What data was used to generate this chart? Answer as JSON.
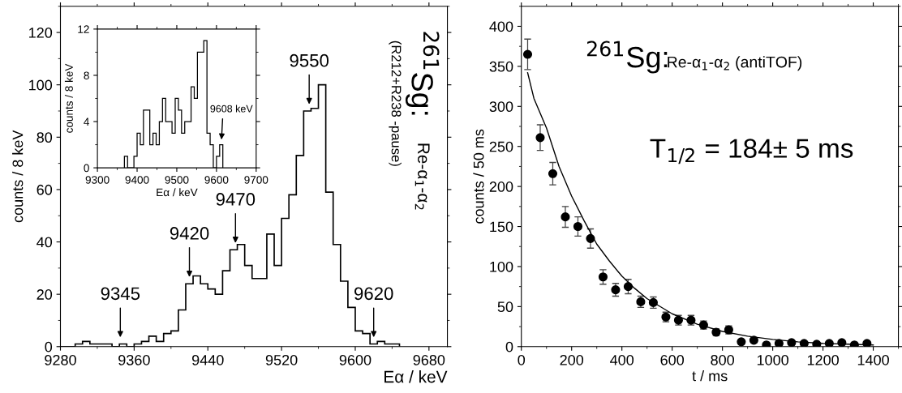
{
  "chart_data": [
    {
      "type": "histogram",
      "xlabel": "Eα / keV",
      "ylabel": "counts / 8 keV",
      "color": "#000000",
      "bins": [
        9280,
        9288,
        9296,
        9304,
        9312,
        9320,
        9328,
        9336,
        9344,
        9352,
        9360,
        9368,
        9376,
        9384,
        9392,
        9400,
        9408,
        9416,
        9424,
        9432,
        9440,
        9448,
        9456,
        9464,
        9472,
        9480,
        9488,
        9496,
        9504,
        9512,
        9520,
        9528,
        9536,
        9544,
        9552,
        9560,
        9568,
        9576,
        9584,
        9592,
        9600,
        9608,
        9616,
        9624,
        9632,
        9640,
        9648
      ],
      "values": [
        0,
        0,
        1,
        2,
        1,
        1,
        1,
        0,
        1,
        0,
        1,
        2,
        4,
        2,
        5,
        6,
        14,
        24,
        27,
        24,
        22,
        20,
        29,
        37,
        39,
        31,
        26,
        26,
        43,
        31,
        49,
        58,
        73,
        90,
        91,
        100,
        59,
        39,
        25,
        15,
        6,
        5,
        1,
        2,
        1,
        1
      ],
      "xlim": [
        9280,
        9700
      ],
      "xticks": [
        9280,
        9360,
        9440,
        9520,
        9600,
        9680
      ],
      "ylim": [
        0,
        130
      ],
      "yticks": [
        0,
        20,
        40,
        60,
        80,
        100,
        120
      ],
      "annotations": [
        {
          "text": "9345",
          "x": 9345,
          "y": 1
        },
        {
          "text": "9420",
          "x": 9420,
          "y": 24
        },
        {
          "text": "9470",
          "x": 9470,
          "y": 37
        },
        {
          "text": "9550",
          "x": 9550,
          "y": 90
        },
        {
          "text": "9620",
          "x": 9620,
          "y": 1
        },
        "$^{261}$Sg:",
        "Re-α$_{1}$-α$_{2}$",
        "(R212+R238 -pause)"
      ]
    },
    {
      "type": "histogram",
      "xlabel": "Eα / keV",
      "ylabel": "counts / 8 keV",
      "color": "#000000",
      "bins": [
        9368,
        9376,
        9384,
        9392,
        9400,
        9408,
        9416,
        9424,
        9432,
        9440,
        9448,
        9456,
        9464,
        9472,
        9480,
        9488,
        9496,
        9504,
        9512,
        9520,
        9528,
        9536,
        9544,
        9552,
        9560,
        9568,
        9576,
        9584,
        9592,
        9600,
        9608,
        9616
      ],
      "values": [
        1,
        0,
        0,
        1,
        3,
        2,
        5,
        5,
        2,
        3,
        2,
        4,
        6,
        4,
        4,
        3,
        6,
        5,
        3,
        4,
        4,
        7,
        6,
        10,
        10,
        11,
        3,
        2,
        0,
        1,
        2
      ],
      "xlim": [
        9300,
        9700
      ],
      "xticks": [
        9300,
        9400,
        9500,
        9600,
        9700
      ],
      "ylim": [
        0,
        12
      ],
      "yticks": [
        0,
        4,
        8,
        12
      ],
      "annotations": [
        {
          "text": "9608 keV",
          "x": 9612,
          "y": 2
        }
      ]
    },
    {
      "type": "scatter",
      "xlabel": "t / ms",
      "ylabel": "counts / 50 ms",
      "xlim": [
        0,
        1500
      ],
      "xticks": [
        0,
        200,
        400,
        600,
        800,
        1000,
        1200,
        1400
      ],
      "ylim": [
        0,
        425
      ],
      "yticks": [
        0,
        50,
        100,
        150,
        200,
        250,
        300,
        350,
        400
      ],
      "series": [
        {
          "type": "scatter",
          "marker": "circle",
          "color": "#000000",
          "x": [
            25,
            75,
            125,
            175,
            225,
            275,
            325,
            375,
            425,
            475,
            525,
            575,
            625,
            675,
            725,
            775,
            825,
            875,
            925,
            975,
            1025,
            1075,
            1125,
            1175,
            1225,
            1275,
            1325,
            1375
          ],
          "values": [
            365,
            261,
            216,
            162,
            150,
            135,
            87,
            71,
            75,
            56,
            55,
            37,
            33,
            33,
            27,
            18,
            21,
            6,
            8,
            2,
            4,
            5,
            4,
            3,
            4,
            5,
            2,
            4
          ],
          "errors": [
            19,
            16,
            14,
            13,
            12,
            12,
            9,
            8,
            9,
            7,
            7,
            6,
            6,
            6,
            5,
            4,
            5,
            2,
            3,
            1,
            2,
            2,
            2,
            2,
            2,
            2,
            1,
            2
          ]
        },
        {
          "type": "line",
          "color": "#000000",
          "x": [
            25,
            50,
            100,
            150,
            200,
            250,
            300,
            350,
            400,
            450,
            500,
            600,
            700,
            800,
            900,
            1000,
            1100,
            1200,
            1300,
            1400
          ],
          "values": [
            342,
            310,
            273,
            225,
            188,
            157,
            128,
            107,
            88,
            73,
            60,
            41,
            28,
            19,
            13,
            9,
            6,
            4,
            3,
            2
          ]
        }
      ],
      "annotations": [
        "$^{261}$Sg:",
        "Re-α$_{1}$-α$_{2}$ (antiTOF)",
        "T$_{1/2}$ = 184± 5 ms"
      ]
    }
  ]
}
